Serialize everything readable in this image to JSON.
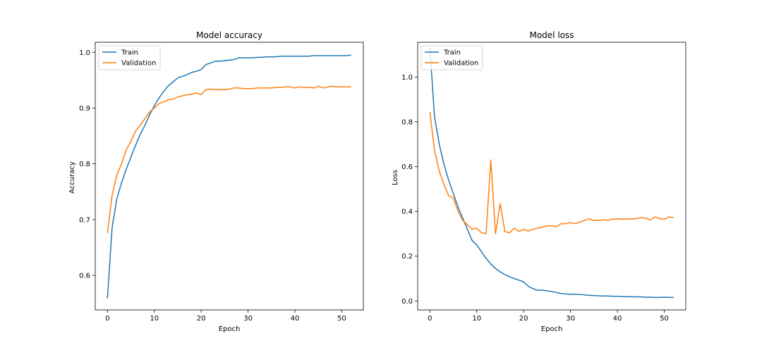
{
  "chart_data": [
    {
      "type": "line",
      "title": "Model accuracy",
      "xlabel": "Epoch",
      "ylabel": "Accuracy",
      "xlim": [
        -2.6,
        54.6
      ],
      "ylim": [
        0.538,
        1.018
      ],
      "xticks": [
        0,
        10,
        20,
        30,
        40,
        50
      ],
      "yticks": [
        0.6,
        0.7,
        0.8,
        0.9,
        1.0
      ],
      "ytick_labels": [
        "0.6",
        "0.7",
        "0.8",
        "0.9",
        "1.0"
      ],
      "legend": "upper-left",
      "x": [
        0,
        1,
        2,
        3,
        4,
        5,
        6,
        7,
        8,
        9,
        10,
        11,
        12,
        13,
        14,
        15,
        16,
        17,
        18,
        19,
        20,
        21,
        22,
        23,
        24,
        25,
        26,
        27,
        28,
        29,
        30,
        31,
        32,
        33,
        34,
        35,
        36,
        37,
        38,
        39,
        40,
        41,
        42,
        43,
        44,
        45,
        46,
        47,
        48,
        49,
        50,
        51,
        52
      ],
      "series": [
        {
          "name": "Train",
          "color": "#1f77b4",
          "values": [
            0.559,
            0.686,
            0.737,
            0.766,
            0.79,
            0.812,
            0.833,
            0.853,
            0.869,
            0.888,
            0.904,
            0.918,
            0.93,
            0.94,
            0.947,
            0.954,
            0.957,
            0.96,
            0.964,
            0.966,
            0.969,
            0.978,
            0.981,
            0.984,
            0.984,
            0.985,
            0.986,
            0.987,
            0.99,
            0.99,
            0.99,
            0.99,
            0.991,
            0.991,
            0.992,
            0.992,
            0.992,
            0.993,
            0.993,
            0.993,
            0.993,
            0.993,
            0.993,
            0.993,
            0.994,
            0.994,
            0.994,
            0.994,
            0.994,
            0.994,
            0.994,
            0.994,
            0.995
          ]
        },
        {
          "name": "Validation",
          "color": "#ff7f0e",
          "values": [
            0.676,
            0.744,
            0.78,
            0.8,
            0.825,
            0.84,
            0.859,
            0.869,
            0.881,
            0.893,
            0.9,
            0.908,
            0.911,
            0.915,
            0.916,
            0.92,
            0.922,
            0.924,
            0.925,
            0.927,
            0.924,
            0.933,
            0.934,
            0.933,
            0.933,
            0.933,
            0.934,
            0.936,
            0.936,
            0.935,
            0.935,
            0.935,
            0.936,
            0.936,
            0.936,
            0.936,
            0.937,
            0.937,
            0.938,
            0.938,
            0.936,
            0.938,
            0.937,
            0.937,
            0.936,
            0.939,
            0.936,
            0.938,
            0.939,
            0.938,
            0.938,
            0.938,
            0.938
          ]
        }
      ]
    },
    {
      "type": "line",
      "title": "Model loss",
      "xlabel": "Epoch",
      "ylabel": "Loss",
      "xlim": [
        -2.6,
        54.6
      ],
      "ylim": [
        -0.04,
        1.155
      ],
      "xticks": [
        0,
        10,
        20,
        30,
        40,
        50
      ],
      "yticks": [
        0.0,
        0.2,
        0.4,
        0.6,
        0.8,
        1.0
      ],
      "ytick_labels": [
        "0.0",
        "0.2",
        "0.4",
        "0.6",
        "0.8",
        "1.0"
      ],
      "legend": "upper-left",
      "x": [
        0,
        1,
        2,
        3,
        4,
        5,
        6,
        7,
        8,
        9,
        10,
        11,
        12,
        13,
        14,
        15,
        16,
        17,
        18,
        19,
        20,
        21,
        22,
        23,
        24,
        25,
        26,
        27,
        28,
        29,
        30,
        31,
        32,
        33,
        34,
        35,
        36,
        37,
        38,
        39,
        40,
        41,
        42,
        43,
        44,
        45,
        46,
        47,
        48,
        49,
        50,
        51,
        52
      ],
      "series": [
        {
          "name": "Train",
          "color": "#1f77b4",
          "values": [
            1.13,
            0.82,
            0.7,
            0.61,
            0.54,
            0.48,
            0.42,
            0.37,
            0.32,
            0.27,
            0.25,
            0.22,
            0.19,
            0.165,
            0.145,
            0.13,
            0.118,
            0.108,
            0.1,
            0.093,
            0.085,
            0.065,
            0.055,
            0.048,
            0.048,
            0.045,
            0.042,
            0.038,
            0.033,
            0.031,
            0.03,
            0.03,
            0.029,
            0.027,
            0.025,
            0.024,
            0.023,
            0.022,
            0.022,
            0.021,
            0.021,
            0.02,
            0.019,
            0.019,
            0.018,
            0.018,
            0.017,
            0.017,
            0.016,
            0.016,
            0.017,
            0.016,
            0.016
          ]
        },
        {
          "name": "Validation",
          "color": "#ff7f0e",
          "values": [
            0.845,
            0.67,
            0.58,
            0.52,
            0.47,
            0.46,
            0.4,
            0.36,
            0.34,
            0.32,
            0.325,
            0.305,
            0.3,
            0.63,
            0.3,
            0.435,
            0.31,
            0.305,
            0.325,
            0.31,
            0.32,
            0.312,
            0.32,
            0.325,
            0.33,
            0.335,
            0.335,
            0.332,
            0.345,
            0.345,
            0.35,
            0.345,
            0.352,
            0.36,
            0.367,
            0.358,
            0.36,
            0.362,
            0.36,
            0.365,
            0.367,
            0.365,
            0.367,
            0.365,
            0.368,
            0.372,
            0.37,
            0.362,
            0.375,
            0.368,
            0.365,
            0.375,
            0.372
          ]
        }
      ]
    }
  ]
}
